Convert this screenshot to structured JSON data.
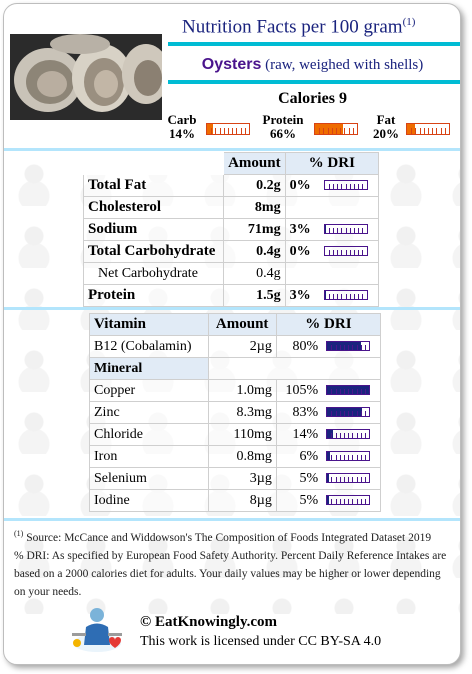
{
  "header": {
    "title": "Nutrition Facts per 100 gram",
    "title_note": "(1)",
    "food_name": "Oysters",
    "food_desc": " (raw, weighed with shells)",
    "calories": "Calories 9"
  },
  "macros": [
    {
      "name": "Carb",
      "pct": "14%",
      "value": 14
    },
    {
      "name": "Protein",
      "pct": "66%",
      "value": 66
    },
    {
      "name": "Fat",
      "pct": "20%",
      "value": 20
    }
  ],
  "main_table": {
    "headers": [
      "",
      "Amount",
      "% DRI"
    ],
    "rows": [
      {
        "name": "Total Fat",
        "amount": "0.2g",
        "dri": "0%",
        "dri_value": 0,
        "bold": true
      },
      {
        "name": "Cholesterol",
        "amount": "8mg",
        "dri": "",
        "dri_value": null,
        "bold": true
      },
      {
        "name": "Sodium",
        "amount": "71mg",
        "dri": "3%",
        "dri_value": 3,
        "bold": true
      },
      {
        "name": "Total Carbohydrate",
        "amount": "0.4g",
        "dri": "0%",
        "dri_value": 0,
        "bold": true
      },
      {
        "name": "Net Carbohydrate",
        "amount": "0.4g",
        "dri": "",
        "dri_value": null,
        "bold": false
      },
      {
        "name": "Protein",
        "amount": "1.5g",
        "dri": "3%",
        "dri_value": 3,
        "bold": true
      }
    ]
  },
  "micro_table": {
    "headers": [
      "Vitamin",
      "Amount",
      "% DRI"
    ],
    "vitamins": [
      {
        "name": "B12 (Cobalamin)",
        "amount": "2µg",
        "dri": "80%",
        "dri_value": 80
      }
    ],
    "mineral_label": "Mineral",
    "minerals": [
      {
        "name": "Copper",
        "amount": "1.0mg",
        "dri": "105%",
        "dri_value": 105
      },
      {
        "name": "Zinc",
        "amount": "8.3mg",
        "dri": "83%",
        "dri_value": 83
      },
      {
        "name": "Chloride",
        "amount": "110mg",
        "dri": "14%",
        "dri_value": 14
      },
      {
        "name": "Iron",
        "amount": "0.8mg",
        "dri": "6%",
        "dri_value": 6
      },
      {
        "name": "Selenium",
        "amount": "3µg",
        "dri": "5%",
        "dri_value": 5
      },
      {
        "name": "Iodine",
        "amount": "8µg",
        "dri": "5%",
        "dri_value": 5
      }
    ]
  },
  "footnote": {
    "marker": "(1)",
    "source": " Source: McCance and Widdowson's The Composition of Foods Integrated Dataset 2019",
    "dri": "% DRI: As specified by European Food Safety Authority. Percent Daily Reference Intakes are based on a 2000 calories diet for adults. Your daily values may be higher or lower depending on your needs."
  },
  "footer": {
    "brand": "© EatKnowingly.com",
    "license": "This work is licensed under CC BY-SA 4.0"
  },
  "colors": {
    "title": "#1a237e",
    "accent_cyan": "#00bcd4",
    "macro_bar": "#ef6c00",
    "dri_bar": "#1a237e",
    "header_bg": "#e1ebf6"
  }
}
